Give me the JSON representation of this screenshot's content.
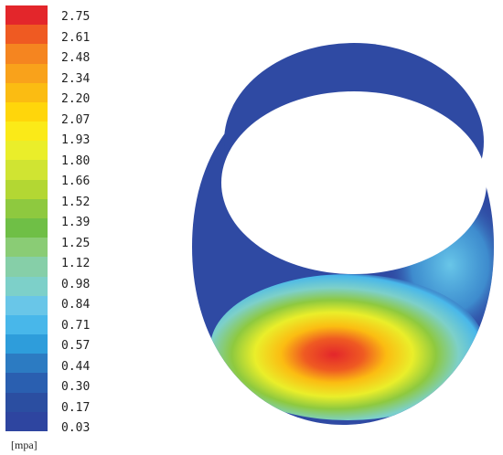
{
  "legend": {
    "unit_label": "[mpa]",
    "colors": [
      "#e3262b",
      "#ef5a22",
      "#f58520",
      "#f9a21b",
      "#fbbc12",
      "#ffd60b",
      "#fbea18",
      "#eaee2a",
      "#d0e432",
      "#b3d733",
      "#8ec93f",
      "#6fbf46",
      "#8acc75",
      "#86cfa8",
      "#7dd0c9",
      "#69c6e8",
      "#48b7ea",
      "#2e9ddb",
      "#2c7bc2",
      "#2a5fb0",
      "#2b4ea1",
      "#2e45a0"
    ],
    "tick_labels": [
      "2.75",
      "2.61",
      "2.48",
      "2.34",
      "2.20",
      "2.07",
      "1.93",
      "1.80",
      "1.66",
      "1.52",
      "1.39",
      "1.25",
      "1.12",
      "0.98",
      "0.84",
      "0.71",
      "0.57",
      "0.44",
      "0.30",
      "0.17",
      "0.03"
    ]
  },
  "contour_plot": {
    "background_color": "#2f4aa3",
    "hot_spot_color": "#e3262b"
  }
}
